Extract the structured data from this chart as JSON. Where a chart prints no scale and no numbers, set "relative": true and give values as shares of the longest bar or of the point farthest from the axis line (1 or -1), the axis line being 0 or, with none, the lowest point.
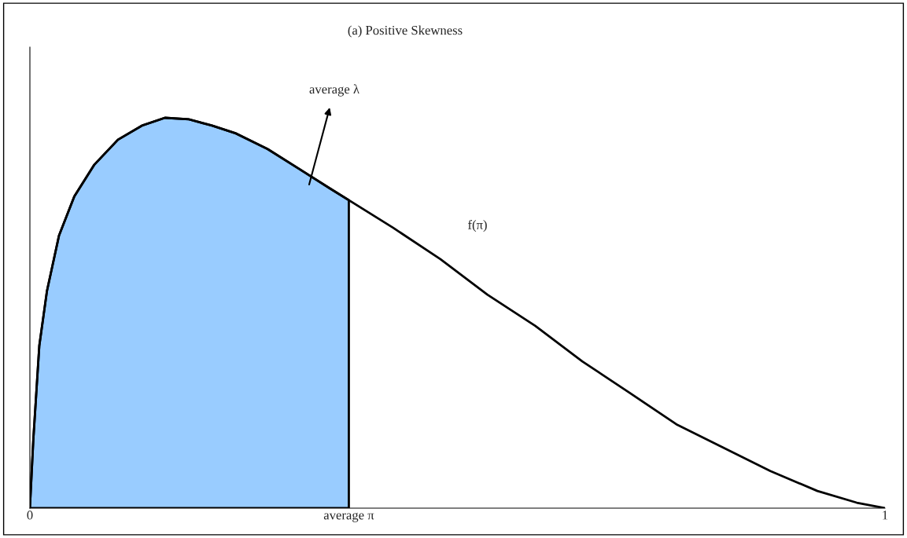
{
  "chart_data": {
    "type": "line",
    "title": "(a) Positive Skewness",
    "relative": true,
    "xlim": [
      0,
      1
    ],
    "xticks": [
      0,
      {
        "value": 0.373,
        "label": "average π"
      },
      1
    ],
    "grid": false,
    "legend": false,
    "annotations": [
      "average λ"
    ],
    "series": [
      {
        "type": "area",
        "color": "#99ccff",
        "x": [
          0,
          0.004,
          0.011,
          0.02,
          0.034,
          0.052,
          0.075,
          0.103,
          0.131,
          0.158,
          0.186,
          0.213,
          0.241,
          0.278,
          0.315,
          0.351,
          0.373
        ],
        "values": [
          0,
          0.175,
          0.416,
          0.557,
          0.698,
          0.799,
          0.879,
          0.944,
          0.98,
          1.0,
          0.996,
          0.98,
          0.96,
          0.92,
          0.869,
          0.819,
          0.789
        ]
      },
      {
        "name": "f(π)",
        "color": "#000000",
        "x": [
          0,
          0.004,
          0.011,
          0.02,
          0.034,
          0.052,
          0.075,
          0.103,
          0.131,
          0.158,
          0.186,
          0.213,
          0.241,
          0.278,
          0.315,
          0.351,
          0.373,
          0.425,
          0.48,
          0.535,
          0.591,
          0.646,
          0.701,
          0.756,
          0.811,
          0.866,
          0.921,
          0.967,
          1.0
        ],
        "values": [
          0,
          0.175,
          0.416,
          0.557,
          0.698,
          0.799,
          0.879,
          0.944,
          0.98,
          1.0,
          0.996,
          0.98,
          0.96,
          0.92,
          0.869,
          0.819,
          0.789,
          0.718,
          0.638,
          0.547,
          0.467,
          0.376,
          0.296,
          0.215,
          0.155,
          0.095,
          0.044,
          0.014,
          0
        ]
      }
    ]
  }
}
